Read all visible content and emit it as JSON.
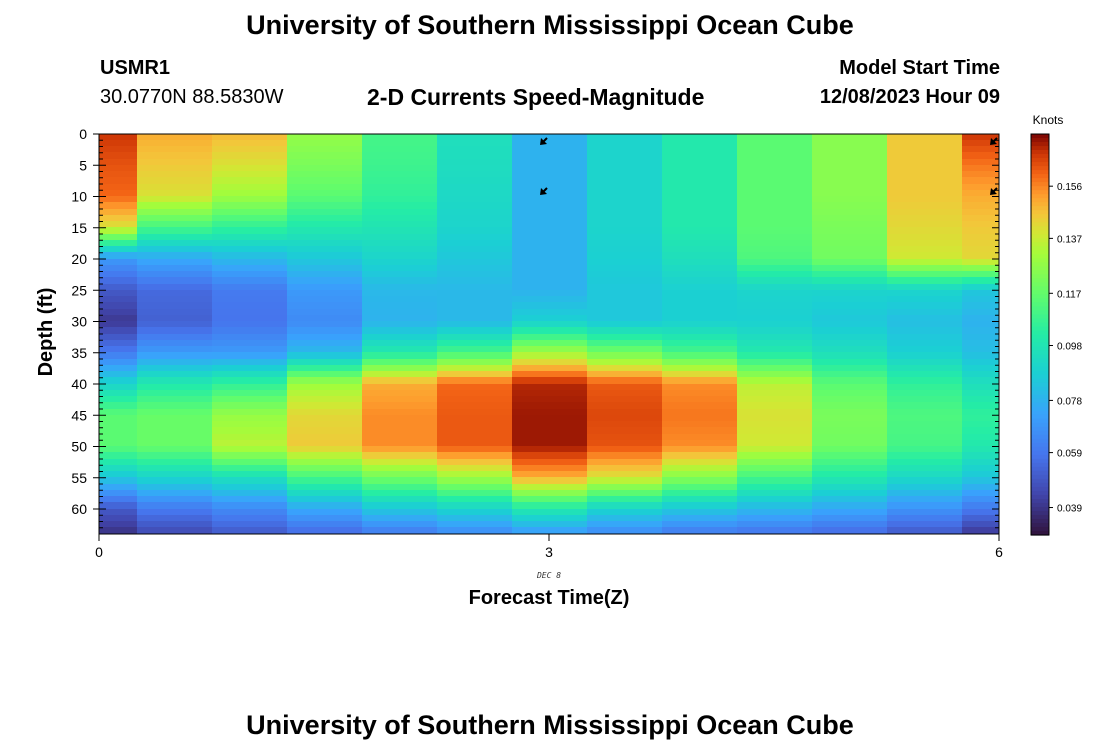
{
  "header": {
    "title": "University of Southern Mississippi Ocean Cube",
    "station_id": "USMR1",
    "station_coords": "30.0770N  88.5830W",
    "plot_title": "2-D Currents Speed-Magnitude",
    "start_label": "Model Start Time",
    "start_value": "12/08/2023 Hour 09"
  },
  "footer": {
    "title": "University of Southern Mississippi Ocean Cube"
  },
  "chart_data": {
    "type": "heatmap",
    "title": "2-D Currents Speed-Magnitude",
    "xlabel": "Forecast Time(Z)",
    "ylabel": "Depth (ft)",
    "x_date_label": "DEC 8",
    "x_ticks": [
      0,
      3,
      6
    ],
    "x_range": [
      0,
      6
    ],
    "y_ticks": [
      0,
      5,
      10,
      15,
      20,
      25,
      30,
      35,
      40,
      45,
      50,
      55,
      60
    ],
    "y_range": [
      0,
      64
    ],
    "y_inverted": true,
    "colorbar": {
      "unit": "Knots",
      "ticks": [
        0.039,
        0.059,
        0.078,
        0.098,
        0.117,
        0.137,
        0.156
      ],
      "range": [
        0.029,
        0.175
      ],
      "colormap": "turbo"
    },
    "time_columns": [
      0,
      0.5,
      1,
      1.5,
      2,
      2.5,
      3,
      3.5,
      4,
      4.5,
      5,
      5.5,
      6
    ],
    "depth_levels": [
      0,
      5,
      10,
      15,
      20,
      25,
      30,
      35,
      40,
      45,
      50,
      55,
      60,
      64
    ],
    "speed_profiles": [
      [
        0.168,
        0.163,
        0.16,
        0.14,
        0.07,
        0.05,
        0.04,
        0.06,
        0.09,
        0.115,
        0.115,
        0.085,
        0.05,
        0.038
      ],
      [
        0.15,
        0.145,
        0.14,
        0.11,
        0.075,
        0.055,
        0.052,
        0.07,
        0.1,
        0.118,
        0.118,
        0.09,
        0.06,
        0.045
      ],
      [
        0.148,
        0.14,
        0.13,
        0.105,
        0.08,
        0.06,
        0.058,
        0.07,
        0.105,
        0.128,
        0.135,
        0.095,
        0.065,
        0.05
      ],
      [
        0.128,
        0.122,
        0.115,
        0.1,
        0.085,
        0.07,
        0.065,
        0.08,
        0.13,
        0.142,
        0.145,
        0.11,
        0.075,
        0.055
      ],
      [
        0.11,
        0.108,
        0.105,
        0.098,
        0.09,
        0.08,
        0.078,
        0.1,
        0.15,
        0.155,
        0.155,
        0.12,
        0.085,
        0.06
      ],
      [
        0.095,
        0.094,
        0.092,
        0.09,
        0.085,
        0.08,
        0.08,
        0.11,
        0.16,
        0.162,
        0.162,
        0.13,
        0.09,
        0.065
      ],
      [
        0.078,
        0.078,
        0.078,
        0.078,
        0.078,
        0.078,
        0.088,
        0.13,
        0.17,
        0.172,
        0.172,
        0.15,
        0.1,
        0.07
      ],
      [
        0.09,
        0.09,
        0.09,
        0.09,
        0.088,
        0.085,
        0.085,
        0.12,
        0.162,
        0.165,
        0.163,
        0.14,
        0.09,
        0.065
      ],
      [
        0.1,
        0.1,
        0.1,
        0.1,
        0.095,
        0.088,
        0.088,
        0.11,
        0.155,
        0.158,
        0.155,
        0.125,
        0.085,
        0.06
      ],
      [
        0.115,
        0.115,
        0.115,
        0.115,
        0.112,
        0.09,
        0.088,
        0.1,
        0.135,
        0.14,
        0.138,
        0.11,
        0.08,
        0.058
      ],
      [
        0.125,
        0.125,
        0.125,
        0.122,
        0.12,
        0.09,
        0.085,
        0.095,
        0.115,
        0.122,
        0.12,
        0.1,
        0.075,
        0.055
      ],
      [
        0.145,
        0.145,
        0.145,
        0.142,
        0.138,
        0.09,
        0.082,
        0.088,
        0.105,
        0.112,
        0.11,
        0.092,
        0.068,
        0.05
      ],
      [
        0.168,
        0.158,
        0.15,
        0.145,
        0.142,
        0.085,
        0.078,
        0.082,
        0.095,
        0.105,
        0.1,
        0.085,
        0.06,
        0.04
      ]
    ],
    "vectors": [
      {
        "time": 3,
        "depth": 0
      },
      {
        "time": 3,
        "depth": 8
      },
      {
        "time": 6,
        "depth": 0
      },
      {
        "time": 6,
        "depth": 8
      }
    ]
  }
}
